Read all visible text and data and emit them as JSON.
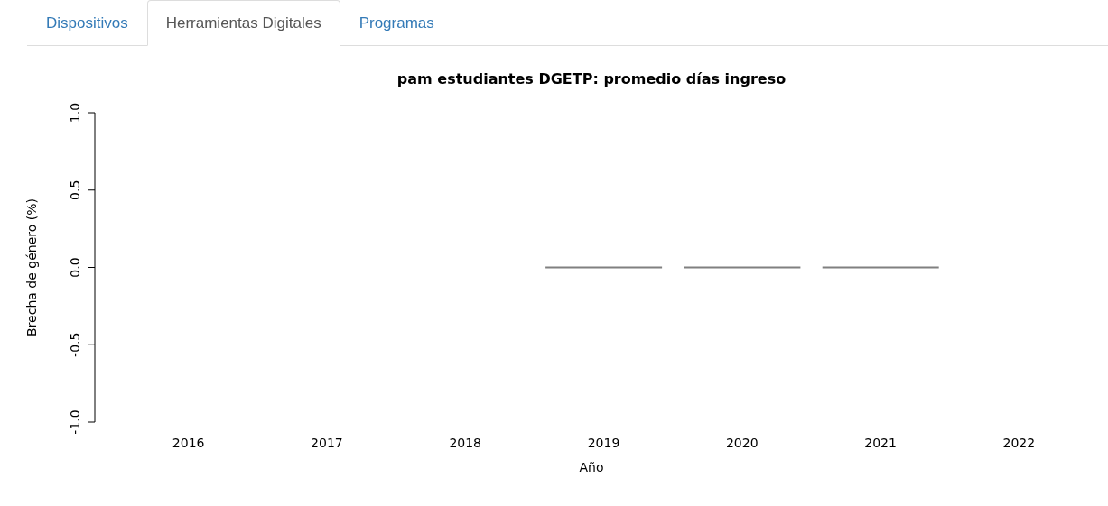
{
  "chart_data": {
    "type": "bar",
    "title": "pam estudiantes DGETP: promedio días ingreso",
    "xlabel": "Año",
    "ylabel": "Brecha de género (%)",
    "annotations": [
      "Dispositivos",
      "Herramientas Digitales",
      "Programas"
    ],
    "categories": [
      "2016",
      "2017",
      "2018",
      "2019",
      "2020",
      "2021",
      "2022"
    ],
    "values": [
      null,
      null,
      null,
      0,
      0,
      0,
      null
    ],
    "color": "#808080",
    "ylim": [
      -1,
      1
    ],
    "yticks": [
      {
        "value": -1,
        "label": "-1.0"
      },
      -0.5,
      {
        "value": 0,
        "label": "0.0"
      },
      0.5,
      {
        "value": 1,
        "label": "1.0"
      }
    ],
    "grid": false,
    "legend": false
  }
}
